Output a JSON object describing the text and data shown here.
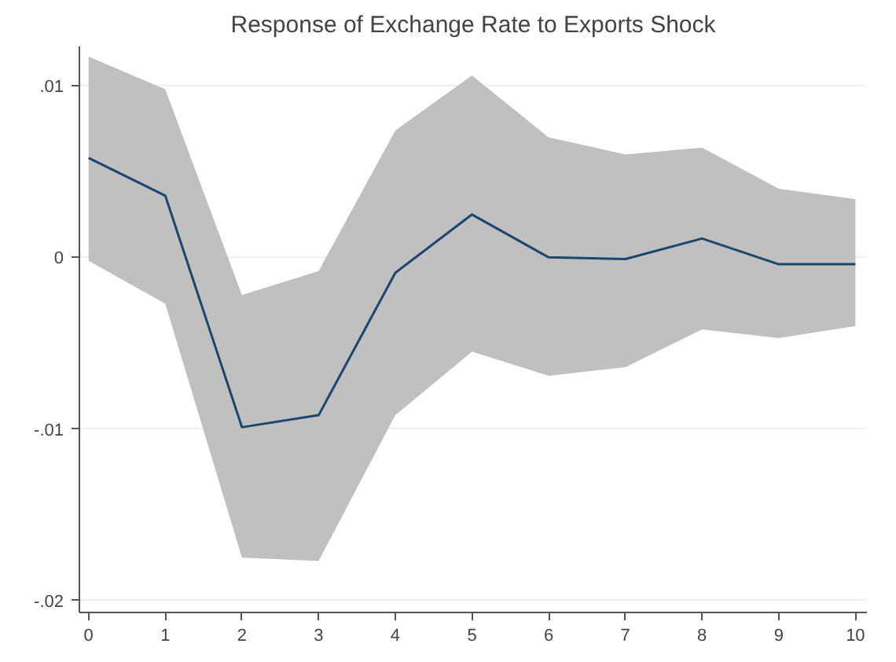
{
  "chart_data": {
    "type": "line",
    "title": "Response of Exchange Rate to Exports Shock",
    "x": [
      0,
      1,
      2,
      3,
      4,
      5,
      6,
      7,
      8,
      9,
      10
    ],
    "series": [
      {
        "color": "#1a476f",
        "values": [
          0.0058,
          0.0036,
          -0.0099,
          -0.0092,
          -0.0009,
          0.0025,
          0.0,
          -0.0001,
          0.0011,
          -0.0004,
          -0.0004
        ],
        "upper": [
          0.0117,
          0.0098,
          -0.0022,
          -0.0008,
          0.0074,
          0.0106,
          0.007,
          0.006,
          0.0064,
          0.004,
          0.0034
        ],
        "lower": [
          -0.0002,
          -0.0027,
          -0.0175,
          -0.0177,
          -0.0092,
          -0.0055,
          -0.0069,
          -0.0064,
          -0.0042,
          -0.0047,
          -0.004
        ]
      }
    ],
    "xlim": [
      -0.12,
      10.15
    ],
    "ylim": [
      -0.0207,
      0.0123
    ],
    "xticks": [
      0,
      1,
      2,
      3,
      4,
      5,
      6,
      7,
      8,
      9,
      10
    ],
    "yticks": [
      {
        "value": -0.02,
        "label": "-.02"
      },
      {
        "value": -0.01,
        "label": "-.01"
      },
      0,
      {
        "value": 0.01,
        "label": ".01"
      }
    ],
    "grid": "y",
    "marker": "none",
    "line_style": "solid"
  }
}
